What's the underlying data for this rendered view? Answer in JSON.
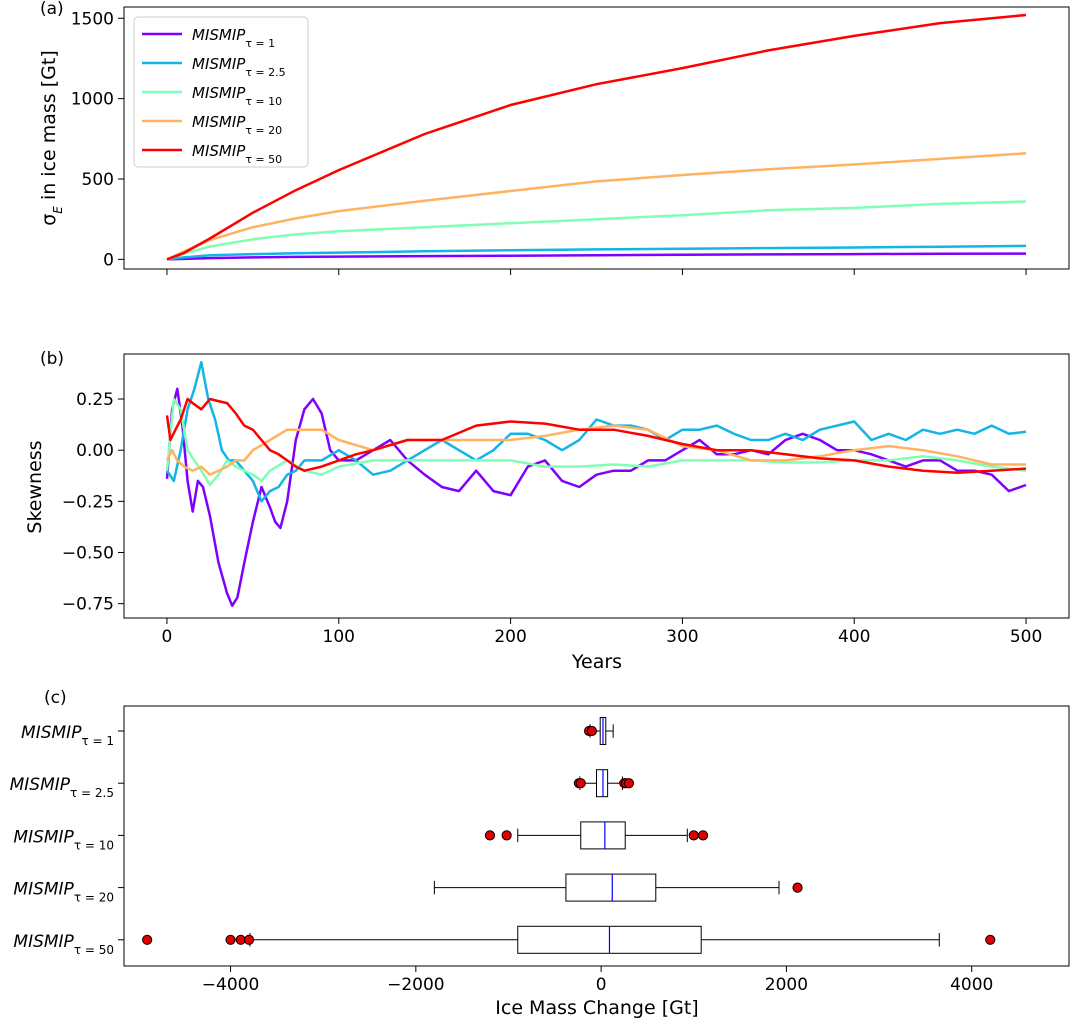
{
  "chart_data": [
    {
      "type": "line",
      "panel_label": "(a)",
      "ylabel": "σ_E in ice mass [Gt]",
      "xlabel": "",
      "xlim": [
        -25,
        525
      ],
      "ylim": [
        -60,
        1570
      ],
      "yticks": [
        0,
        500,
        1000,
        1500
      ],
      "xticks": [
        0,
        100,
        200,
        300,
        400,
        500
      ],
      "show_xtick_labels": false,
      "legend_position": "upper-left",
      "series": [
        {
          "name": "MISMIP",
          "subscript": "τ = 1",
          "color": "#8000ff",
          "x": [
            0,
            10,
            25,
            50,
            75,
            100,
            150,
            200,
            250,
            300,
            350,
            400,
            450,
            500
          ],
          "values": [
            0,
            3,
            8,
            12,
            15,
            17,
            20,
            23,
            26,
            29,
            31,
            33,
            35,
            36
          ]
        },
        {
          "name": "MISMIP",
          "subscript": "τ = 2.5",
          "color": "#12b5e6",
          "x": [
            0,
            10,
            25,
            50,
            75,
            100,
            150,
            200,
            250,
            300,
            350,
            400,
            450,
            500
          ],
          "values": [
            0,
            12,
            25,
            33,
            38,
            42,
            50,
            57,
            62,
            66,
            70,
            74,
            79,
            84
          ]
        },
        {
          "name": "MISMIP",
          "subscript": "τ = 10",
          "color": "#80ffb4",
          "x": [
            0,
            10,
            25,
            50,
            75,
            100,
            150,
            200,
            250,
            300,
            350,
            400,
            450,
            500
          ],
          "values": [
            0,
            35,
            80,
            125,
            155,
            175,
            200,
            225,
            250,
            275,
            305,
            320,
            345,
            360
          ]
        },
        {
          "name": "MISMIP",
          "subscript": "τ = 20",
          "color": "#ffb360",
          "x": [
            0,
            10,
            25,
            50,
            75,
            100,
            150,
            200,
            250,
            300,
            350,
            400,
            450,
            500
          ],
          "values": [
            0,
            50,
            120,
            200,
            255,
            300,
            365,
            425,
            485,
            525,
            560,
            590,
            625,
            660
          ]
        },
        {
          "name": "MISMIP",
          "subscript": "τ = 50",
          "color": "#ff0000",
          "x": [
            0,
            10,
            25,
            50,
            75,
            100,
            150,
            200,
            250,
            300,
            350,
            400,
            450,
            500
          ],
          "values": [
            0,
            40,
            130,
            290,
            430,
            555,
            780,
            960,
            1090,
            1190,
            1300,
            1390,
            1470,
            1520
          ]
        }
      ]
    },
    {
      "type": "line",
      "panel_label": "(b)",
      "ylabel": "Skewness",
      "xlabel": "Years",
      "xlim": [
        -25,
        525
      ],
      "ylim": [
        -0.82,
        0.47
      ],
      "yticks": [
        0.25,
        0.0,
        -0.25,
        -0.5,
        -0.75
      ],
      "ytick_labels": [
        "0.25",
        "0.00",
        "−0.25",
        "−0.50",
        "−0.75"
      ],
      "xticks": [
        0,
        100,
        200,
        300,
        400,
        500
      ],
      "xtick_labels": [
        "0",
        "100",
        "200",
        "300",
        "400",
        "500"
      ],
      "series": [
        {
          "name": "MISMIP",
          "subscript": "τ = 1",
          "color": "#8000ff",
          "x": [
            0,
            3,
            6,
            9,
            12,
            15,
            18,
            21,
            25,
            30,
            35,
            38,
            41,
            45,
            50,
            55,
            60,
            63,
            66,
            70,
            75,
            80,
            85,
            90,
            95,
            100,
            110,
            120,
            130,
            140,
            150,
            160,
            170,
            180,
            190,
            200,
            210,
            220,
            230,
            240,
            250,
            260,
            270,
            280,
            290,
            300,
            310,
            320,
            330,
            340,
            350,
            360,
            370,
            380,
            390,
            400,
            410,
            420,
            430,
            440,
            450,
            460,
            470,
            480,
            490,
            500
          ],
          "values": [
            -0.14,
            0.2,
            0.3,
            0.12,
            -0.15,
            -0.3,
            -0.15,
            -0.18,
            -0.32,
            -0.55,
            -0.7,
            -0.76,
            -0.72,
            -0.55,
            -0.35,
            -0.18,
            -0.28,
            -0.35,
            -0.38,
            -0.25,
            0.05,
            0.2,
            0.25,
            0.18,
            0.0,
            -0.05,
            -0.05,
            0.0,
            0.05,
            -0.05,
            -0.12,
            -0.18,
            -0.2,
            -0.1,
            -0.2,
            -0.22,
            -0.08,
            -0.05,
            -0.15,
            -0.18,
            -0.12,
            -0.1,
            -0.1,
            -0.05,
            -0.05,
            0.0,
            0.05,
            -0.02,
            -0.02,
            0.0,
            -0.02,
            0.05,
            0.08,
            0.05,
            0.0,
            0.0,
            -0.02,
            -0.05,
            -0.08,
            -0.05,
            -0.05,
            -0.1,
            -0.1,
            -0.12,
            -0.2,
            -0.17
          ]
        },
        {
          "name": "MISMIP",
          "subscript": "τ = 2.5",
          "color": "#12b5e6",
          "x": [
            0,
            4,
            8,
            12,
            16,
            20,
            24,
            28,
            32,
            36,
            40,
            45,
            50,
            55,
            60,
            65,
            70,
            75,
            80,
            90,
            100,
            110,
            120,
            130,
            140,
            150,
            160,
            170,
            180,
            190,
            200,
            210,
            220,
            230,
            240,
            250,
            260,
            270,
            280,
            290,
            300,
            310,
            320,
            330,
            340,
            350,
            360,
            370,
            380,
            390,
            400,
            410,
            420,
            430,
            440,
            450,
            460,
            470,
            480,
            490,
            500
          ],
          "values": [
            -0.1,
            -0.15,
            0.0,
            0.2,
            0.3,
            0.43,
            0.25,
            0.15,
            0.0,
            -0.05,
            -0.05,
            -0.1,
            -0.15,
            -0.25,
            -0.2,
            -0.18,
            -0.12,
            -0.1,
            -0.05,
            -0.05,
            0.0,
            -0.05,
            -0.12,
            -0.1,
            -0.05,
            0.0,
            0.05,
            0.0,
            -0.05,
            0.0,
            0.08,
            0.08,
            0.05,
            0.0,
            0.05,
            0.15,
            0.12,
            0.12,
            0.1,
            0.05,
            0.1,
            0.1,
            0.12,
            0.08,
            0.05,
            0.05,
            0.08,
            0.05,
            0.1,
            0.12,
            0.14,
            0.05,
            0.08,
            0.05,
            0.1,
            0.08,
            0.1,
            0.08,
            0.12,
            0.08,
            0.09
          ]
        },
        {
          "name": "MISMIP",
          "subscript": "τ = 10",
          "color": "#80ffb4",
          "x": [
            0,
            4,
            8,
            12,
            16,
            20,
            25,
            30,
            35,
            40,
            45,
            50,
            55,
            60,
            70,
            80,
            90,
            100,
            120,
            140,
            160,
            180,
            200,
            220,
            240,
            260,
            280,
            300,
            320,
            340,
            360,
            380,
            400,
            420,
            440,
            460,
            480,
            500
          ],
          "values": [
            -0.1,
            0.25,
            0.2,
            0.0,
            -0.05,
            -0.1,
            -0.17,
            -0.12,
            -0.05,
            -0.08,
            -0.1,
            -0.12,
            -0.15,
            -0.1,
            -0.05,
            -0.1,
            -0.12,
            -0.08,
            -0.05,
            -0.05,
            -0.05,
            -0.05,
            -0.05,
            -0.08,
            -0.08,
            -0.07,
            -0.08,
            -0.05,
            -0.05,
            -0.05,
            -0.06,
            -0.06,
            -0.05,
            -0.05,
            -0.03,
            -0.05,
            -0.08,
            -0.1
          ]
        },
        {
          "name": "MISMIP",
          "subscript": "τ = 20",
          "color": "#ffb360",
          "x": [
            0,
            3,
            6,
            10,
            15,
            20,
            25,
            30,
            35,
            40,
            45,
            50,
            60,
            70,
            80,
            90,
            100,
            120,
            140,
            160,
            180,
            200,
            220,
            240,
            260,
            280,
            300,
            320,
            340,
            360,
            380,
            400,
            420,
            440,
            460,
            480,
            500
          ],
          "values": [
            -0.05,
            0.0,
            -0.05,
            -0.08,
            -0.1,
            -0.08,
            -0.12,
            -0.1,
            -0.08,
            -0.05,
            -0.05,
            0.0,
            0.05,
            0.1,
            0.1,
            0.1,
            0.05,
            0.0,
            0.05,
            0.05,
            0.05,
            0.05,
            0.07,
            0.1,
            0.12,
            0.1,
            0.02,
            0.0,
            -0.05,
            -0.05,
            -0.03,
            0.0,
            0.02,
            0.0,
            -0.03,
            -0.07,
            -0.07
          ]
        },
        {
          "name": "MISMIP",
          "subscript": "τ = 50",
          "color": "#ff0000",
          "x": [
            0,
            2,
            5,
            8,
            12,
            15,
            20,
            25,
            30,
            35,
            40,
            45,
            50,
            55,
            60,
            65,
            70,
            75,
            80,
            90,
            100,
            110,
            120,
            140,
            160,
            180,
            200,
            220,
            240,
            260,
            280,
            300,
            320,
            340,
            360,
            380,
            400,
            420,
            440,
            460,
            480,
            500
          ],
          "values": [
            0.17,
            0.05,
            0.1,
            0.15,
            0.25,
            0.23,
            0.2,
            0.25,
            0.24,
            0.23,
            0.18,
            0.12,
            0.1,
            0.05,
            0.0,
            -0.02,
            -0.05,
            -0.08,
            -0.1,
            -0.08,
            -0.05,
            -0.02,
            0.0,
            0.05,
            0.05,
            0.12,
            0.14,
            0.13,
            0.1,
            0.1,
            0.07,
            0.03,
            0.0,
            0.0,
            -0.02,
            -0.04,
            -0.05,
            -0.08,
            -0.1,
            -0.11,
            -0.1,
            -0.09
          ]
        }
      ]
    },
    {
      "type": "box",
      "panel_label": "(c)",
      "xlabel": "Ice Mass Change [Gt]",
      "xlim": [
        -5150,
        5050
      ],
      "xticks": [
        -4000,
        -2000,
        0,
        2000,
        4000
      ],
      "xtick_labels": [
        "−4000",
        "−2000",
        "0",
        "2000",
        "4000"
      ],
      "categories": [
        {
          "name": "MISMIP",
          "subscript": "τ = 1"
        },
        {
          "name": "MISMIP",
          "subscript": "τ = 2.5"
        },
        {
          "name": "MISMIP",
          "subscript": "τ = 10"
        },
        {
          "name": "MISMIP",
          "subscript": "τ = 20"
        },
        {
          "name": "MISMIP",
          "subscript": "τ = 50"
        }
      ],
      "boxes": [
        {
          "whisker_low": -120,
          "q1": -10,
          "median": 20,
          "q3": 50,
          "whisker_high": 130,
          "outliers": [
            -130,
            -100
          ]
        },
        {
          "whisker_low": -230,
          "q1": -50,
          "median": 20,
          "q3": 70,
          "whisker_high": 230,
          "outliers": [
            -240,
            -220,
            250,
            270,
            300
          ]
        },
        {
          "whisker_low": -900,
          "q1": -220,
          "median": 40,
          "q3": 260,
          "whisker_high": 930,
          "outliers": [
            -1200,
            -1020,
            1000,
            1100
          ]
        },
        {
          "whisker_low": -1800,
          "q1": -380,
          "median": 120,
          "q3": 590,
          "whisker_high": 1920,
          "outliers": [
            2120
          ]
        },
        {
          "whisker_low": -3790,
          "q1": -900,
          "median": 90,
          "q3": 1080,
          "whisker_high": 3650,
          "outliers": [
            -4900,
            -4000,
            -3890,
            -3800,
            4200
          ]
        }
      ],
      "box_color": "#000000",
      "median_color": "#0000ff",
      "outlier_color": "#e00000"
    }
  ]
}
